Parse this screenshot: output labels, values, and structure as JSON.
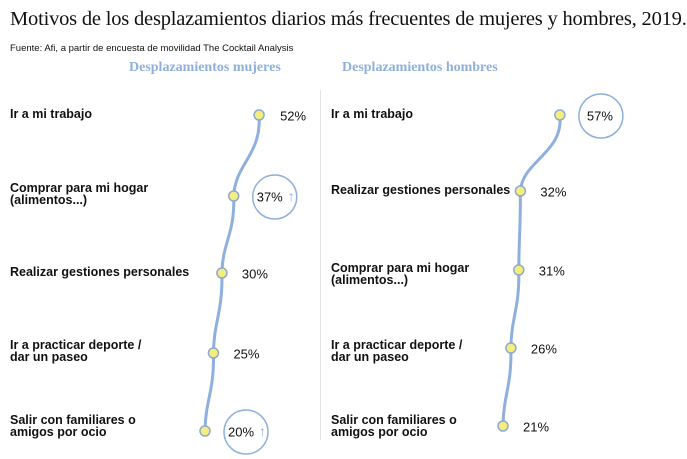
{
  "title": "Motivos de los desplazamientos diarios más frecuentes de mujeres y hombres, 2019.",
  "source": "Fuente: Afi, a partir de encuesta de movilidad The Cocktail Analysis",
  "colors": {
    "line": "#8fb0dc",
    "dot_fill": "#f4ef7c",
    "dot_stroke": "#8fa9cf",
    "highlight_circle": "#8fb0dc",
    "heading": "#8fb0dc"
  },
  "chart_data": [
    {
      "type": "line",
      "title": "Desplazamientos mujeres",
      "categories": [
        "Ir a mi trabajo",
        "Comprar para mi hogar (alimentos...)",
        "Realizar gestiones personales",
        "Ir a practicar deporte / dar un paseo",
        "Salir con familiares o amigos por ocio"
      ],
      "values": [
        52,
        37,
        30,
        25,
        20
      ],
      "labels": [
        "52%",
        "37%",
        "30%",
        "25%",
        "20%"
      ],
      "highlighted": [
        false,
        true,
        false,
        false,
        true
      ],
      "highlight_marker": "↑"
    },
    {
      "type": "line",
      "title": "Desplazamientos hombres",
      "categories": [
        "Ir a mi trabajo",
        "Realizar gestiones personales",
        "Comprar para mi hogar (alimentos...)",
        "Ir a practicar deporte / dar un paseo",
        "Salir con familiares o amigos por ocio"
      ],
      "values": [
        57,
        32,
        31,
        26,
        21
      ],
      "labels": [
        "57%",
        "32%",
        "31%",
        "26%",
        "21%"
      ],
      "highlighted": [
        true,
        false,
        false,
        false,
        false
      ],
      "highlight_marker": ""
    }
  ]
}
